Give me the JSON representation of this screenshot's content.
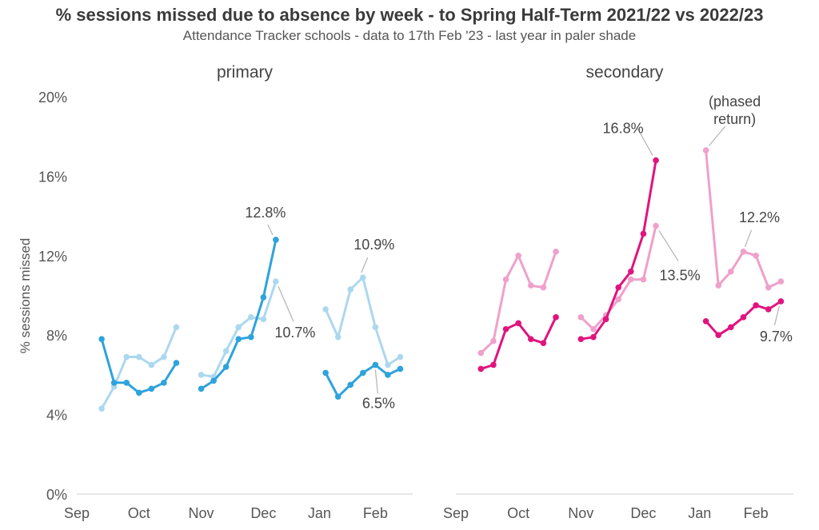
{
  "chart_data": {
    "type": "line",
    "title": "% sessions missed due to absence by week - to Spring Half-Term 2021/22 vs 2022/23",
    "subtitle": "Attendance Tracker schools - data to 17th Feb '23 - last year in paler shade",
    "ylabel": "% sessions missed",
    "ylim": [
      0,
      20
    ],
    "ytick_labels": [
      "0%",
      "4%",
      "8%",
      "12%",
      "16%",
      "20%"
    ],
    "ytick_values": [
      0,
      4,
      8,
      12,
      16,
      20
    ],
    "xtick_labels": [
      "Sep",
      "Oct",
      "Nov",
      "Dec",
      "Jan",
      "Feb"
    ],
    "grid": false,
    "colors": {
      "primary_current": "#2ea3dc",
      "primary_last": "#acd8ef",
      "secondary_current": "#e0147f",
      "secondary_last": "#efa0cb",
      "axis": "#cccccc",
      "text": "#555555"
    },
    "panels": [
      {
        "name": "primary",
        "x_ticks": [
          0,
          10,
          20,
          30,
          39,
          48
        ],
        "xlim": [
          0,
          54
        ],
        "series": [
          {
            "role": "current",
            "segments": [
              [
                [
                  4,
                  7.8
                ],
                [
                  6,
                  5.6
                ],
                [
                  8,
                  5.6
                ],
                [
                  10,
                  5.1
                ],
                [
                  12,
                  5.3
                ],
                [
                  14,
                  5.6
                ],
                [
                  16,
                  6.6
                ]
              ],
              [
                [
                  20,
                  5.3
                ],
                [
                  22,
                  5.7
                ],
                [
                  24,
                  6.4
                ],
                [
                  26,
                  7.8
                ],
                [
                  28,
                  7.9
                ],
                [
                  30,
                  9.9
                ],
                [
                  32,
                  12.8
                ]
              ],
              [
                [
                  40,
                  6.1
                ],
                [
                  42,
                  4.9
                ],
                [
                  44,
                  5.5
                ],
                [
                  46,
                  6.1
                ],
                [
                  48,
                  6.5
                ],
                [
                  50,
                  6.0
                ],
                [
                  52,
                  6.3
                ]
              ]
            ]
          },
          {
            "role": "last",
            "segments": [
              [
                [
                  4,
                  4.3
                ],
                [
                  6,
                  5.4
                ],
                [
                  8,
                  6.9
                ],
                [
                  10,
                  6.9
                ],
                [
                  12,
                  6.5
                ],
                [
                  14,
                  6.9
                ],
                [
                  16,
                  8.4
                ]
              ],
              [
                [
                  20,
                  6.0
                ],
                [
                  22,
                  5.9
                ],
                [
                  24,
                  7.2
                ],
                [
                  26,
                  8.4
                ],
                [
                  28,
                  8.9
                ],
                [
                  30,
                  8.8
                ],
                [
                  32,
                  10.7
                ]
              ],
              [
                [
                  40,
                  9.3
                ],
                [
                  42,
                  7.9
                ],
                [
                  44,
                  10.3
                ],
                [
                  46,
                  10.9
                ],
                [
                  48,
                  8.4
                ],
                [
                  50,
                  6.5
                ],
                [
                  52,
                  6.9
                ]
              ]
            ]
          }
        ],
        "annotations": [
          {
            "text": "12.8%",
            "x": 32,
            "y": 12.8
          },
          {
            "text": "10.7%",
            "x": 32,
            "y": 10.7
          },
          {
            "text": "10.9%",
            "x": 46,
            "y": 10.9
          },
          {
            "text": "6.5%",
            "x": 48,
            "y": 6.5
          }
        ]
      },
      {
        "name": "secondary",
        "x_ticks": [
          0,
          10,
          20,
          30,
          39,
          48
        ],
        "xlim": [
          0,
          54
        ],
        "series": [
          {
            "role": "current",
            "segments": [
              [
                [
                  4,
                  6.3
                ],
                [
                  6,
                  6.5
                ],
                [
                  8,
                  8.3
                ],
                [
                  10,
                  8.6
                ],
                [
                  12,
                  7.8
                ],
                [
                  14,
                  7.6
                ],
                [
                  16,
                  8.9
                ]
              ],
              [
                [
                  20,
                  7.8
                ],
                [
                  22,
                  7.9
                ],
                [
                  24,
                  8.8
                ],
                [
                  26,
                  10.4
                ],
                [
                  28,
                  11.2
                ],
                [
                  30,
                  13.1
                ],
                [
                  32,
                  16.8
                ]
              ],
              [
                [
                  40,
                  8.7
                ],
                [
                  42,
                  8.0
                ],
                [
                  44,
                  8.4
                ],
                [
                  46,
                  8.9
                ],
                [
                  48,
                  9.5
                ],
                [
                  50,
                  9.3
                ],
                [
                  52,
                  9.7
                ]
              ]
            ]
          },
          {
            "role": "last",
            "segments": [
              [
                [
                  4,
                  7.1
                ],
                [
                  6,
                  7.7
                ],
                [
                  8,
                  10.8
                ],
                [
                  10,
                  12.0
                ],
                [
                  12,
                  10.5
                ],
                [
                  14,
                  10.4
                ],
                [
                  16,
                  12.2
                ]
              ],
              [
                [
                  20,
                  8.9
                ],
                [
                  22,
                  8.3
                ],
                [
                  24,
                  9.0
                ],
                [
                  26,
                  9.8
                ],
                [
                  28,
                  10.8
                ],
                [
                  30,
                  10.8
                ],
                [
                  32,
                  13.5
                ]
              ],
              [
                [
                  40,
                  17.3
                ],
                [
                  42,
                  10.5
                ],
                [
                  44,
                  11.2
                ],
                [
                  46,
                  12.2
                ],
                [
                  48,
                  12.0
                ],
                [
                  50,
                  10.4
                ],
                [
                  52,
                  10.7
                ]
              ]
            ]
          }
        ],
        "annotations": [
          {
            "text": "16.8%",
            "x": 32,
            "y": 16.8
          },
          {
            "text": "13.5%",
            "x": 32,
            "y": 13.5
          },
          {
            "text": "(phased return)",
            "x": 40,
            "y": 17.3
          },
          {
            "text": "12.2%",
            "x": 46,
            "y": 12.2
          },
          {
            "text": "9.7%",
            "x": 52,
            "y": 9.7
          }
        ]
      }
    ]
  }
}
